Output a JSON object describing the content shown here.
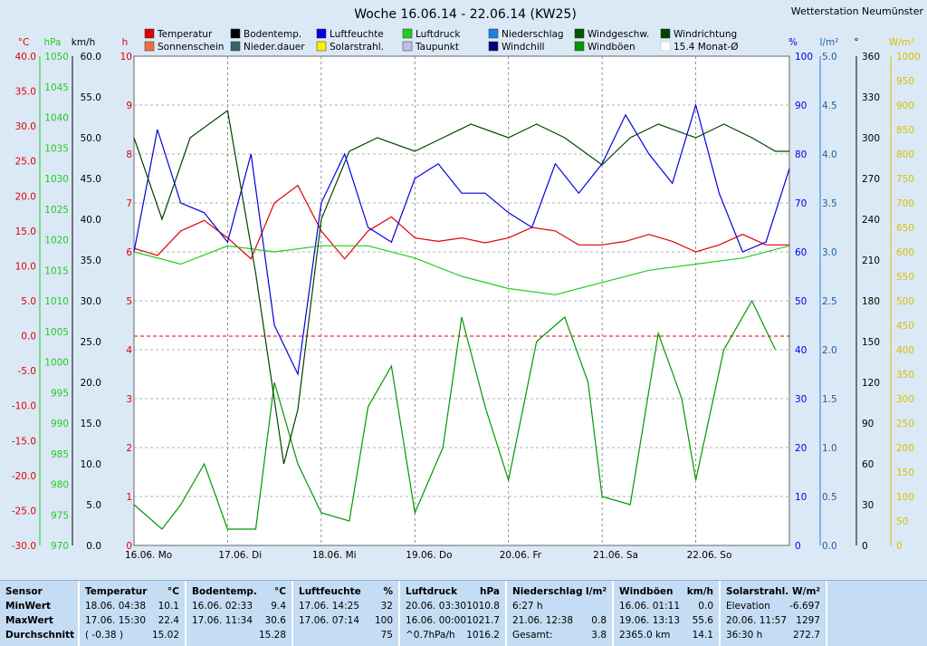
{
  "chart_data": {
    "type": "line",
    "title": "Woche 16.06.14 - 22.06.14 (KW25)",
    "station": "Wetterstation Neumünster",
    "x_days": [
      "16.06. Mo",
      "17.06. Di",
      "18.06. Mi",
      "19.06. Do",
      "20.06. Fr",
      "21.06. Sa",
      "22.06. So"
    ],
    "legend": [
      {
        "name": "Temperatur",
        "color": "#e00000"
      },
      {
        "name": "Sonnenschein",
        "color": "#f07040"
      },
      {
        "name": "Bodentemp.",
        "color": "#000000"
      },
      {
        "name": "Nieder.dauer",
        "color": "#336666"
      },
      {
        "name": "Luftfeuchte",
        "color": "#0000e0"
      },
      {
        "name": "Solarstrahl.",
        "color": "#ffee00"
      },
      {
        "name": "Luftdruck",
        "color": "#22cc22"
      },
      {
        "name": "Taupunkt",
        "color": "#c0c0e0"
      },
      {
        "name": "Niederschlag",
        "color": "#2080e0"
      },
      {
        "name": "Windchill",
        "color": "#000080"
      },
      {
        "name": "Windgeschw.",
        "color": "#005500"
      },
      {
        "name": "Windböen",
        "color": "#009900"
      },
      {
        "name": "Windrichtung",
        "color": "#004400"
      },
      {
        "name": "15.4 Monat-Ø",
        "color": "#b0b0b0"
      }
    ],
    "axes": {
      "temp_c": {
        "unit": "°C",
        "range": [
          -30,
          40
        ],
        "color": "#e00000"
      },
      "pressure_hpa": {
        "unit": "hPa",
        "range": [
          970,
          1050
        ],
        "color": "#22cc22"
      },
      "wind_kmh": {
        "unit": "km/h",
        "range": [
          0,
          60
        ],
        "color": "#000000"
      },
      "hours_h": {
        "unit": "h",
        "range": [
          0,
          10
        ],
        "color": "#e00000"
      },
      "humidity_pct": {
        "unit": "%",
        "range": [
          0,
          100
        ],
        "color": "#0000e0"
      },
      "rain_lm2": {
        "unit": "l/m²",
        "range": [
          0,
          5
        ],
        "color": "#2080e0"
      },
      "direction_deg": {
        "unit": "°",
        "range": [
          0,
          360
        ],
        "color": "#000000"
      },
      "solar_wm2": {
        "unit": "W/m²",
        "range": [
          0,
          1000
        ],
        "color": "#d8c000"
      }
    },
    "series": [
      {
        "name": "Temperatur",
        "unit": "°C",
        "points": [
          [
            0,
            12.5
          ],
          [
            0.25,
            11.5
          ],
          [
            0.5,
            15
          ],
          [
            0.75,
            16.5
          ],
          [
            1,
            14
          ],
          [
            1.25,
            11
          ],
          [
            1.5,
            19
          ],
          [
            1.75,
            21.5
          ],
          [
            2,
            15
          ],
          [
            2.25,
            11
          ],
          [
            2.5,
            15
          ],
          [
            2.75,
            17
          ],
          [
            3,
            14
          ],
          [
            3.25,
            13.5
          ],
          [
            3.5,
            14
          ],
          [
            3.75,
            13.3
          ],
          [
            4,
            14
          ],
          [
            4.25,
            15.5
          ],
          [
            4.5,
            15
          ],
          [
            4.75,
            13
          ],
          [
            5,
            13
          ],
          [
            5.25,
            13.5
          ],
          [
            5.5,
            14.5
          ],
          [
            5.75,
            13.5
          ],
          [
            6,
            12
          ],
          [
            6.25,
            13
          ],
          [
            6.5,
            14.5
          ],
          [
            6.75,
            13
          ],
          [
            7,
            13
          ]
        ]
      },
      {
        "name": "Luftfeuchte",
        "unit": "%",
        "points": [
          [
            0,
            60
          ],
          [
            0.25,
            85
          ],
          [
            0.5,
            70
          ],
          [
            0.75,
            68
          ],
          [
            1,
            62
          ],
          [
            1.25,
            80
          ],
          [
            1.5,
            45
          ],
          [
            1.75,
            35
          ],
          [
            2,
            70
          ],
          [
            2.25,
            80
          ],
          [
            2.5,
            65
          ],
          [
            2.75,
            62
          ],
          [
            3,
            75
          ],
          [
            3.25,
            78
          ],
          [
            3.5,
            72
          ],
          [
            3.75,
            72
          ],
          [
            4,
            68
          ],
          [
            4.25,
            65
          ],
          [
            4.5,
            78
          ],
          [
            4.75,
            72
          ],
          [
            5,
            78
          ],
          [
            5.25,
            88
          ],
          [
            5.5,
            80
          ],
          [
            5.75,
            74
          ],
          [
            6,
            90
          ],
          [
            6.25,
            72
          ],
          [
            6.5,
            60
          ],
          [
            6.75,
            62
          ],
          [
            7,
            77
          ]
        ]
      },
      {
        "name": "Luftdruck",
        "unit": "hPa",
        "points": [
          [
            0,
            1018
          ],
          [
            0.5,
            1016
          ],
          [
            1,
            1019
          ],
          [
            1.5,
            1018
          ],
          [
            2,
            1019
          ],
          [
            2.5,
            1019
          ],
          [
            3,
            1017
          ],
          [
            3.5,
            1014
          ],
          [
            4,
            1012
          ],
          [
            4.5,
            1011
          ],
          [
            5,
            1013
          ],
          [
            5.5,
            1015
          ],
          [
            6,
            1016
          ],
          [
            6.5,
            1017
          ],
          [
            7,
            1019
          ]
        ]
      },
      {
        "name": "Windböen",
        "unit": "km/h",
        "points": [
          [
            0,
            5
          ],
          [
            0.3,
            2
          ],
          [
            0.5,
            5
          ],
          [
            0.75,
            10
          ],
          [
            1,
            2
          ],
          [
            1.3,
            2
          ],
          [
            1.5,
            20
          ],
          [
            1.75,
            10
          ],
          [
            2,
            4
          ],
          [
            2.3,
            3
          ],
          [
            2.5,
            17
          ],
          [
            2.75,
            22
          ],
          [
            3.0,
            4
          ],
          [
            3.3,
            12
          ],
          [
            3.5,
            28
          ],
          [
            3.75,
            17
          ],
          [
            4,
            8
          ],
          [
            4.3,
            25
          ],
          [
            4.6,
            28
          ],
          [
            4.85,
            20
          ],
          [
            5.0,
            6
          ],
          [
            5.3,
            5
          ],
          [
            5.6,
            26
          ],
          [
            5.85,
            18
          ],
          [
            6.0,
            8
          ],
          [
            6.3,
            24
          ],
          [
            6.6,
            30
          ],
          [
            6.85,
            24
          ]
        ]
      },
      {
        "name": "Windrichtung",
        "unit": "°",
        "points": [
          [
            0,
            300
          ],
          [
            0.3,
            240
          ],
          [
            0.6,
            300
          ],
          [
            1,
            320
          ],
          [
            1.3,
            200
          ],
          [
            1.6,
            60
          ],
          [
            1.75,
            100
          ],
          [
            2,
            240
          ],
          [
            2.3,
            290
          ],
          [
            2.6,
            300
          ],
          [
            3,
            290
          ],
          [
            3.3,
            300
          ],
          [
            3.6,
            310
          ],
          [
            4,
            300
          ],
          [
            4.3,
            310
          ],
          [
            4.6,
            300
          ],
          [
            5,
            280
          ],
          [
            5.3,
            300
          ],
          [
            5.6,
            310
          ],
          [
            6,
            300
          ],
          [
            6.3,
            310
          ],
          [
            6.6,
            300
          ],
          [
            6.85,
            290
          ],
          [
            7,
            290
          ]
        ]
      }
    ]
  },
  "summary": {
    "sensor": {
      "header": "Sensor",
      "rows": [
        "MinWert",
        "MaxWert",
        "Durchschnitt"
      ]
    },
    "temperatur": {
      "header": "Temperatur",
      "unit": "°C",
      "rows": [
        [
          "18.06.  04:38",
          "10.1"
        ],
        [
          "17.06.  15:30",
          "22.4"
        ],
        [
          "( -0.38 )",
          "15.02"
        ]
      ]
    },
    "bodentemp": {
      "header": "Bodentemp.",
      "unit": "°C",
      "rows": [
        [
          "16.06.  02:33",
          "9.4"
        ],
        [
          "17.06.  11:34",
          "30.6"
        ],
        [
          "",
          "15.28"
        ]
      ]
    },
    "luftfeuchte": {
      "header": "Luftfeuchte",
      "unit": "%",
      "rows": [
        [
          "17.06.  14:25",
          "32"
        ],
        [
          "17.06.  07:14",
          "100"
        ],
        [
          "",
          "75"
        ]
      ]
    },
    "luftdruck": {
      "header": "Luftdruck",
      "unit": "hPa",
      "rows": [
        [
          "20.06.  03:30",
          "1010.8"
        ],
        [
          "16.06.  00:00",
          "1021.7"
        ],
        [
          "^0.7hPa/h",
          "1016.2"
        ]
      ]
    },
    "niederschlag": {
      "header": "Niederschlag",
      "unit": "l/m²",
      "rows": [
        [
          "6:27 h",
          ""
        ],
        [
          "21.06.  12:38",
          "0.8"
        ],
        [
          "Gesamt:",
          "3.8"
        ]
      ]
    },
    "windboeen": {
      "header": "Windböen",
      "unit": "km/h",
      "rows": [
        [
          "16.06.  01:11",
          "0.0"
        ],
        [
          "19.06.  13:13",
          "55.6"
        ],
        [
          "2365.0 km",
          "14.1"
        ]
      ]
    },
    "solar": {
      "header": "Solarstrahl.",
      "unit": "W/m²",
      "rows": [
        [
          "Elevation",
          "-6.697"
        ],
        [
          "20.06.  11:57",
          "1297"
        ],
        [
          "36:30 h",
          "272.7"
        ]
      ]
    }
  }
}
